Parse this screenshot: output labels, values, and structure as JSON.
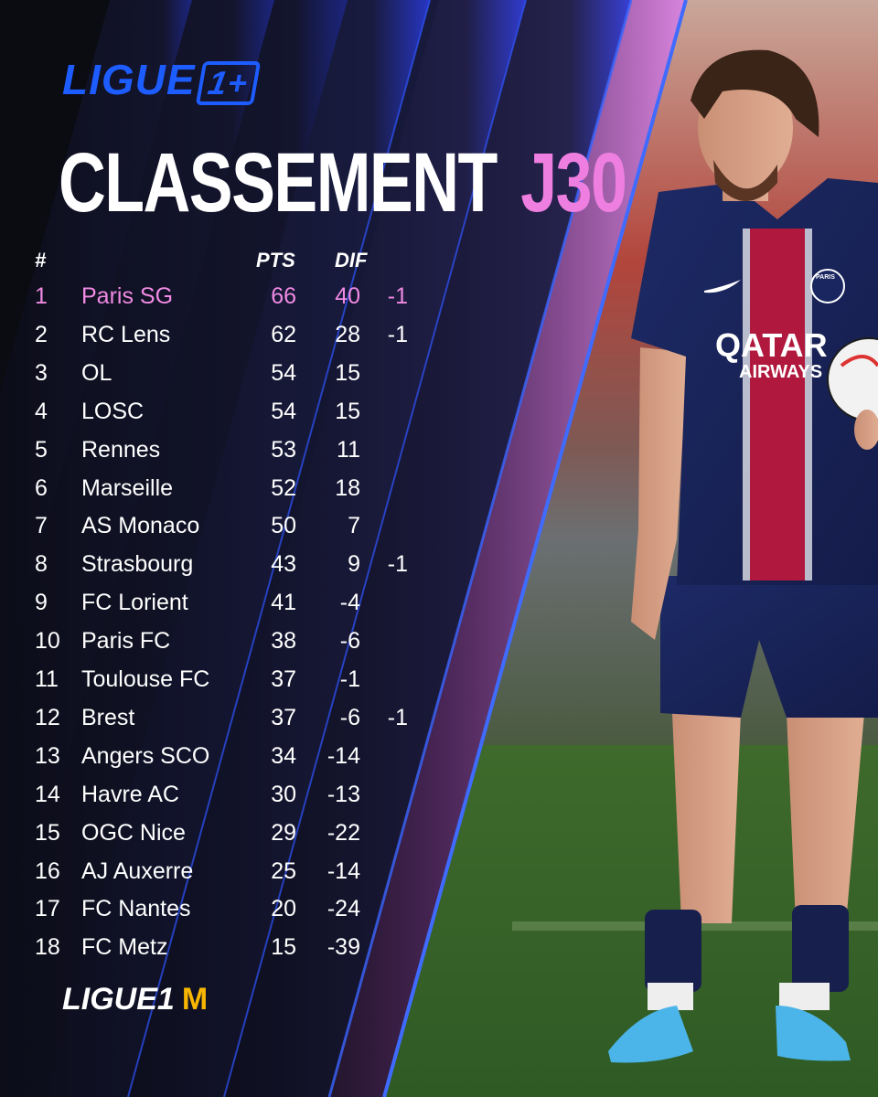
{
  "brand": {
    "top_logo_text": "LIGUE",
    "top_logo_badge": "1+",
    "bottom_logo_text": "LIGUE",
    "bottom_logo_badge": "1",
    "bottom_sponsor_glyph": "M",
    "accent_blue": "#1d5cff",
    "accent_pink": "#ee7fe0"
  },
  "title": {
    "main": "CLASSEMENT",
    "matchday": "J30"
  },
  "table": {
    "headers": {
      "rank": "#",
      "pts": "PTS",
      "dif": "DIF"
    },
    "rows": [
      {
        "rank": "1",
        "team": "Paris SG",
        "pts": "66",
        "dif": "40",
        "pen": "-1"
      },
      {
        "rank": "2",
        "team": "RC Lens",
        "pts": "62",
        "dif": "28",
        "pen": "-1"
      },
      {
        "rank": "3",
        "team": "OL",
        "pts": "54",
        "dif": "15",
        "pen": ""
      },
      {
        "rank": "4",
        "team": "LOSC",
        "pts": "54",
        "dif": "15",
        "pen": ""
      },
      {
        "rank": "5",
        "team": "Rennes",
        "pts": "53",
        "dif": "11",
        "pen": ""
      },
      {
        "rank": "6",
        "team": "Marseille",
        "pts": "52",
        "dif": "18",
        "pen": ""
      },
      {
        "rank": "7",
        "team": "AS Monaco",
        "pts": "50",
        "dif": "7",
        "pen": ""
      },
      {
        "rank": "8",
        "team": "Strasbourg",
        "pts": "43",
        "dif": "9",
        "pen": "-1"
      },
      {
        "rank": "9",
        "team": "FC Lorient",
        "pts": "41",
        "dif": "-4",
        "pen": ""
      },
      {
        "rank": "10",
        "team": "Paris FC",
        "pts": "38",
        "dif": "-6",
        "pen": ""
      },
      {
        "rank": "11",
        "team": "Toulouse FC",
        "pts": "37",
        "dif": "-1",
        "pen": ""
      },
      {
        "rank": "12",
        "team": "Brest",
        "pts": "37",
        "dif": "-6",
        "pen": "-1"
      },
      {
        "rank": "13",
        "team": "Angers SCO",
        "pts": "34",
        "dif": "-14",
        "pen": ""
      },
      {
        "rank": "14",
        "team": "Havre AC",
        "pts": "30",
        "dif": "-13",
        "pen": ""
      },
      {
        "rank": "15",
        "team": "OGC Nice",
        "pts": "29",
        "dif": "-22",
        "pen": ""
      },
      {
        "rank": "16",
        "team": "AJ Auxerre",
        "pts": "25",
        "dif": "-14",
        "pen": ""
      },
      {
        "rank": "17",
        "team": "FC Nantes",
        "pts": "20",
        "dif": "-24",
        "pen": ""
      },
      {
        "rank": "18",
        "team": "FC Metz",
        "pts": "15",
        "dif": "-39",
        "pen": ""
      }
    ]
  },
  "photo": {
    "shirt_sponsor_line1": "QATAR",
    "shirt_sponsor_line2": "AIRWAYS",
    "crest_text": "PARIS"
  }
}
